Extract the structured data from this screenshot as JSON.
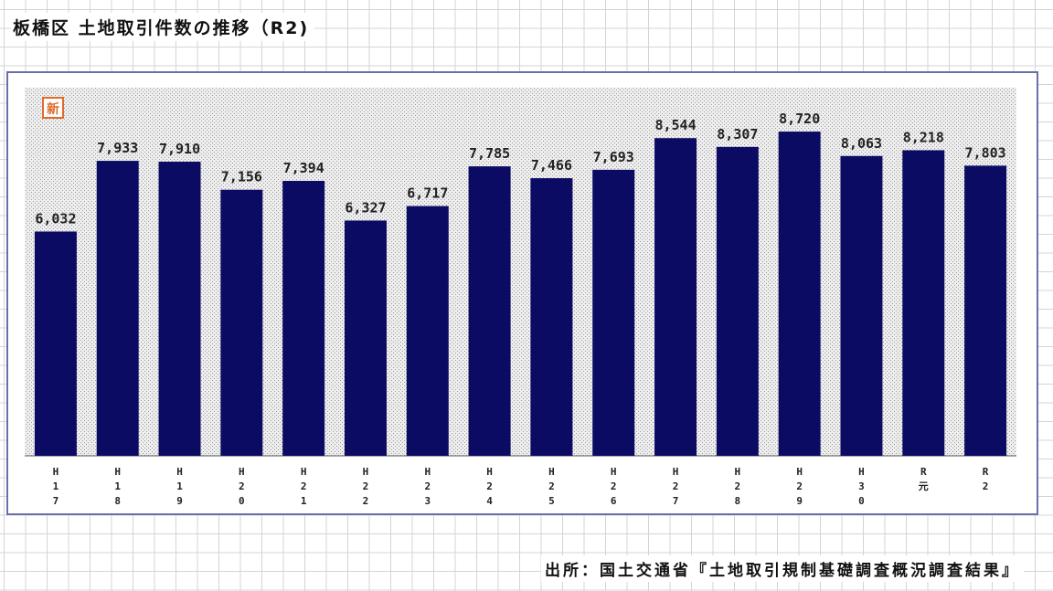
{
  "header": {
    "title": "板橋区 土地取引件数の推移（R2)"
  },
  "footer": {
    "source": "出所：国土交通省『土地取引規制基礎調査概況調査結果』"
  },
  "badge": {
    "text": "新"
  },
  "chart_data": {
    "type": "bar",
    "title": "板橋区 土地取引件数の推移（R2)",
    "categories": [
      "H17",
      "H18",
      "H19",
      "H20",
      "H21",
      "H22",
      "H23",
      "H24",
      "H25",
      "H26",
      "H27",
      "H28",
      "H29",
      "H30",
      "R元",
      "R2"
    ],
    "tick_labels": [
      "H\n1\n7",
      "H\n1\n8",
      "H\n1\n9",
      "H\n2\n0",
      "H\n2\n1",
      "H\n2\n2",
      "H\n2\n3",
      "H\n2\n4",
      "H\n2\n5",
      "H\n2\n6",
      "H\n2\n7",
      "H\n2\n8",
      "H\n2\n9",
      "H\n3\n0",
      "R\n元",
      "R\n2"
    ],
    "values": [
      6032,
      7933,
      7910,
      7156,
      7394,
      6327,
      6717,
      7785,
      7466,
      7693,
      8544,
      8307,
      8720,
      8063,
      8218,
      7803
    ],
    "data_labels": [
      "6,032",
      "7,933",
      "7,910",
      "7,156",
      "7,394",
      "6,327",
      "6,717",
      "7,785",
      "7,466",
      "7,693",
      "8,544",
      "8,307",
      "8,720",
      "8,063",
      "8,218",
      "7,803"
    ],
    "xlabel": "",
    "ylabel": "",
    "ylim": [
      0,
      9900
    ],
    "grid": false,
    "colors": {
      "bar": "#0b0b63",
      "plot_bg": "#e6e6e6",
      "frame": "#6a6fa8",
      "badge": "#e06a2a"
    }
  }
}
